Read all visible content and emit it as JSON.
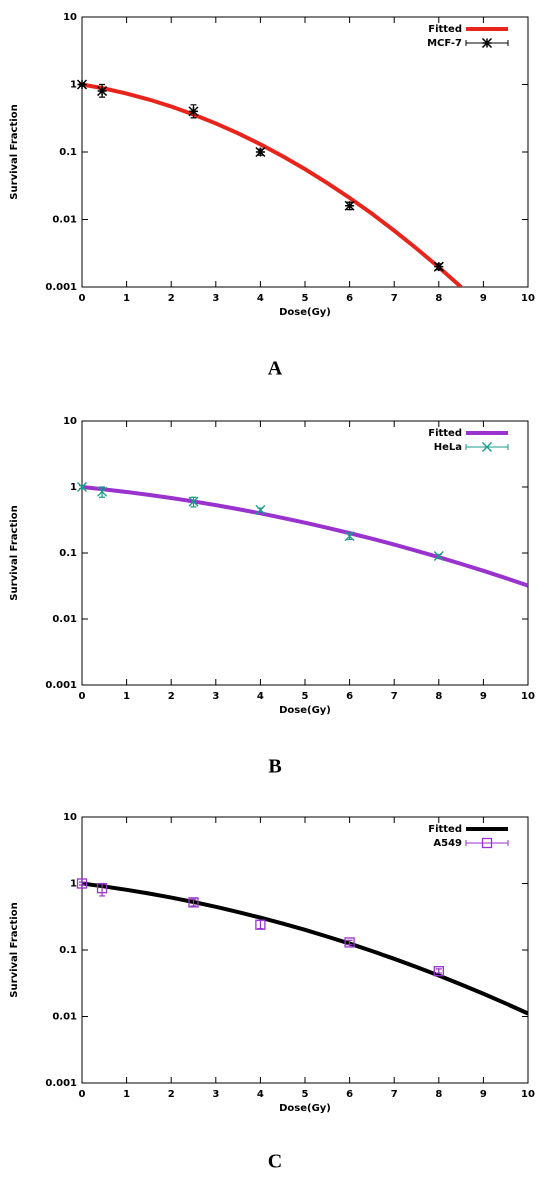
{
  "chart_data": [
    {
      "type": "line",
      "panel_label": "A",
      "xlabel": "Dose(Gy)",
      "ylabel": "Survival Fraction",
      "log_y": true,
      "legend": "upper right",
      "xlim": [
        0,
        10
      ],
      "xticks": [
        0,
        1,
        2,
        3,
        4,
        5,
        6,
        7,
        8,
        9,
        10
      ],
      "ylim": [
        0.001,
        10
      ],
      "yticks": [
        0.001,
        0.01,
        0.1,
        1,
        10
      ],
      "series": [
        {
          "name": "Fitted",
          "color": "#e8251c",
          "style": "line",
          "x": [
            0,
            0.5,
            1,
            1.5,
            2,
            2.5,
            3,
            3.5,
            4,
            4.5,
            5,
            5.5,
            6,
            6.5,
            7,
            7.5,
            8,
            8.5
          ],
          "values": [
            1,
            0.872,
            0.735,
            0.599,
            0.472,
            0.359,
            0.265,
            0.189,
            0.13,
            0.0865,
            0.0557,
            0.0347,
            0.0209,
            0.0122,
            0.00684,
            0.00372,
            0.00196,
            0.001
          ]
        },
        {
          "name": "MCF-7",
          "color": "#000000",
          "style": "points",
          "marker": "star",
          "x": [
            0,
            0.45,
            2.5,
            4,
            6,
            8
          ],
          "values": [
            1,
            0.8,
            0.4,
            0.1,
            0.016,
            0.002
          ],
          "y_low": [
            0.95,
            0.65,
            0.32,
            0.09,
            0.014,
            0.0018
          ],
          "y_high": [
            1.05,
            1.0,
            0.5,
            0.11,
            0.018,
            0.0022
          ]
        }
      ]
    },
    {
      "type": "line",
      "panel_label": "B",
      "xlabel": "Dose(Gy)",
      "ylabel": "Survival Fraction",
      "log_y": true,
      "legend": "upper right",
      "xlim": [
        0,
        10
      ],
      "xticks": [
        0,
        1,
        2,
        3,
        4,
        5,
        6,
        7,
        8,
        9,
        10
      ],
      "ylim": [
        0.001,
        10
      ],
      "yticks": [
        0.001,
        0.01,
        0.1,
        1,
        10
      ],
      "series": [
        {
          "name": "Fitted",
          "color": "#9a32cd",
          "style": "line",
          "x": [
            0,
            0.5,
            1,
            1.5,
            2,
            2.5,
            3,
            3.5,
            4,
            4.5,
            5,
            5.5,
            6,
            6.5,
            7,
            7.5,
            8,
            8.5,
            9,
            9.5,
            10
          ],
          "values": [
            1,
            0.921,
            0.841,
            0.76,
            0.681,
            0.604,
            0.531,
            0.462,
            0.399,
            0.34,
            0.288,
            0.241,
            0.2,
            0.165,
            0.134,
            0.108,
            0.0865,
            0.0684,
            0.0537,
            0.0417,
            0.0321
          ]
        },
        {
          "name": "HeLa",
          "color": "#1a9a8a",
          "style": "points",
          "marker": "cross",
          "x": [
            0,
            0.45,
            2.5,
            4,
            6,
            8
          ],
          "values": [
            1,
            0.85,
            0.6,
            0.45,
            0.18,
            0.09
          ],
          "y_low": [
            0.95,
            0.7,
            0.5,
            0.42,
            0.16,
            0.085
          ],
          "y_high": [
            1.05,
            1.0,
            0.7,
            0.48,
            0.2,
            0.095
          ]
        }
      ]
    },
    {
      "type": "line",
      "panel_label": "C",
      "xlabel": "Dose(Gy)",
      "ylabel": "Survival Fraction",
      "log_y": true,
      "legend": "upper right",
      "xlim": [
        0,
        10
      ],
      "xticks": [
        0,
        1,
        2,
        3,
        4,
        5,
        6,
        7,
        8,
        9,
        10
      ],
      "ylim": [
        0.001,
        10
      ],
      "yticks": [
        0.001,
        0.01,
        0.1,
        1,
        10
      ],
      "series": [
        {
          "name": "Fitted",
          "color": "#000000",
          "style": "line",
          "x": [
            0,
            0.5,
            1,
            1.5,
            2,
            2.5,
            3,
            3.5,
            4,
            4.5,
            5,
            5.5,
            6,
            6.5,
            7,
            7.5,
            8,
            8.5,
            9,
            9.5,
            10
          ],
          "values": [
            1,
            0.903,
            0.804,
            0.708,
            0.614,
            0.527,
            0.446,
            0.372,
            0.307,
            0.25,
            0.201,
            0.159,
            0.125,
            0.0965,
            0.0737,
            0.0555,
            0.0413,
            0.0303,
            0.022,
            0.0157,
            0.0111
          ]
        },
        {
          "name": "A549",
          "color": "#9a32cd",
          "style": "points",
          "marker": "square",
          "x": [
            0,
            0.45,
            2.5,
            4,
            6,
            8
          ],
          "values": [
            1,
            0.85,
            0.52,
            0.24,
            0.13,
            0.048
          ],
          "y_low": [
            0.95,
            0.65,
            0.46,
            0.21,
            0.12,
            0.045
          ],
          "y_high": [
            1.05,
            1.0,
            0.58,
            0.28,
            0.14,
            0.052
          ]
        }
      ]
    }
  ]
}
